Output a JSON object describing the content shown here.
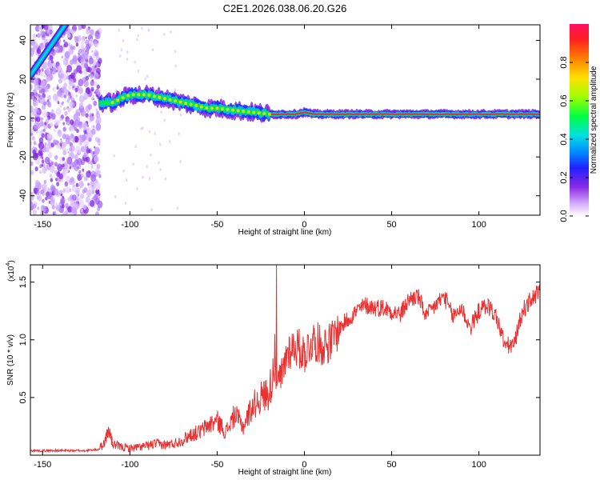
{
  "title": "C2E1.2026.038.06.20.G26",
  "chart_data": [
    {
      "type": "heatmap",
      "name": "spectrogram",
      "xlabel": "Height of straight line (km)",
      "ylabel": "Frequency (Hz)",
      "xlim": [
        -157,
        135
      ],
      "ylim": [
        -50,
        48
      ],
      "xticks": [
        -150,
        -100,
        -50,
        0,
        50,
        100
      ],
      "xtick_labels": [
        "-150",
        "-100",
        "-50",
        "0",
        "50",
        "100"
      ],
      "yticks": [
        -40,
        -20,
        0,
        20,
        40
      ],
      "ytick_labels": [
        "-40",
        "-20",
        "0",
        "20",
        "40"
      ],
      "noise_region_x": [
        -157,
        -117
      ],
      "direct_signal_line": {
        "x": [
          -157,
          -137
        ],
        "y": [
          22,
          48
        ]
      },
      "ridge_frequency": {
        "x": [
          -117,
          -110,
          -105,
          -100,
          -95,
          -90,
          -85,
          -80,
          -75,
          -70,
          -65,
          -60,
          -55,
          -50,
          -45,
          -40,
          -35,
          -30,
          -25,
          -20,
          -15,
          -10,
          -5,
          0,
          5,
          10,
          20,
          40,
          60,
          80,
          100,
          120,
          135
        ],
        "y": [
          8,
          8,
          10,
          12,
          12,
          12,
          11,
          10,
          9,
          8,
          7,
          6,
          5,
          5,
          4.5,
          4,
          3.5,
          3,
          2.5,
          2,
          2,
          2,
          2,
          3,
          2,
          2,
          2,
          2,
          2,
          2,
          2,
          2,
          2
        ]
      },
      "colorbar": {
        "label": "Normalized spectral amplitude",
        "range": [
          0,
          1
        ],
        "ticks": [
          0.0,
          0.2,
          0.4,
          0.6,
          0.8
        ],
        "tick_labels": [
          "0.0",
          "0.2",
          "0.4",
          "0.6",
          "0.8"
        ]
      }
    },
    {
      "type": "line",
      "name": "snr",
      "xlabel": "Height of straight line (km)",
      "ylabel": "SNR (10 * v/v)",
      "y_multiplier_label": "(x10",
      "y_multiplier_exp": "4",
      "y_multiplier_close": ")",
      "xlim": [
        -157,
        135
      ],
      "ylim": [
        0,
        1.65
      ],
      "xticks": [
        -150,
        -100,
        -50,
        0,
        50,
        100
      ],
      "xtick_labels": [
        "-150",
        "-100",
        "-50",
        "0",
        "50",
        "100"
      ],
      "yticks": [
        0.5,
        1.0,
        1.5
      ],
      "ytick_labels": [
        "0.5",
        "1.0",
        "1.5"
      ],
      "color": "#e83232",
      "series": [
        {
          "name": "SNR",
          "x": [
            -157,
            -145,
            -135,
            -125,
            -118,
            -115,
            -112,
            -110,
            -107,
            -105,
            -100,
            -95,
            -90,
            -85,
            -80,
            -75,
            -70,
            -65,
            -60,
            -55,
            -50,
            -45,
            -40,
            -35,
            -30,
            -25,
            -20,
            -17,
            -15,
            -12,
            -10,
            -5,
            0,
            5,
            10,
            15,
            20,
            25,
            30,
            35,
            40,
            45,
            50,
            55,
            60,
            65,
            70,
            75,
            80,
            85,
            90,
            95,
            100,
            105,
            110,
            115,
            120,
            125,
            130,
            135
          ],
          "y": [
            0.04,
            0.04,
            0.04,
            0.04,
            0.05,
            0.1,
            0.22,
            0.1,
            0.08,
            0.07,
            0.06,
            0.07,
            0.08,
            0.1,
            0.09,
            0.1,
            0.13,
            0.18,
            0.2,
            0.26,
            0.3,
            0.2,
            0.35,
            0.25,
            0.42,
            0.5,
            0.55,
            0.8,
            0.6,
            0.72,
            0.9,
            0.95,
            0.88,
            1.0,
            0.95,
            0.98,
            1.1,
            1.18,
            1.25,
            1.3,
            1.28,
            1.28,
            1.25,
            1.22,
            1.35,
            1.38,
            1.2,
            1.3,
            1.38,
            1.2,
            1.28,
            1.1,
            1.25,
            1.3,
            1.2,
            0.95,
            0.95,
            1.25,
            1.35,
            1.42
          ]
        }
      ]
    }
  ]
}
